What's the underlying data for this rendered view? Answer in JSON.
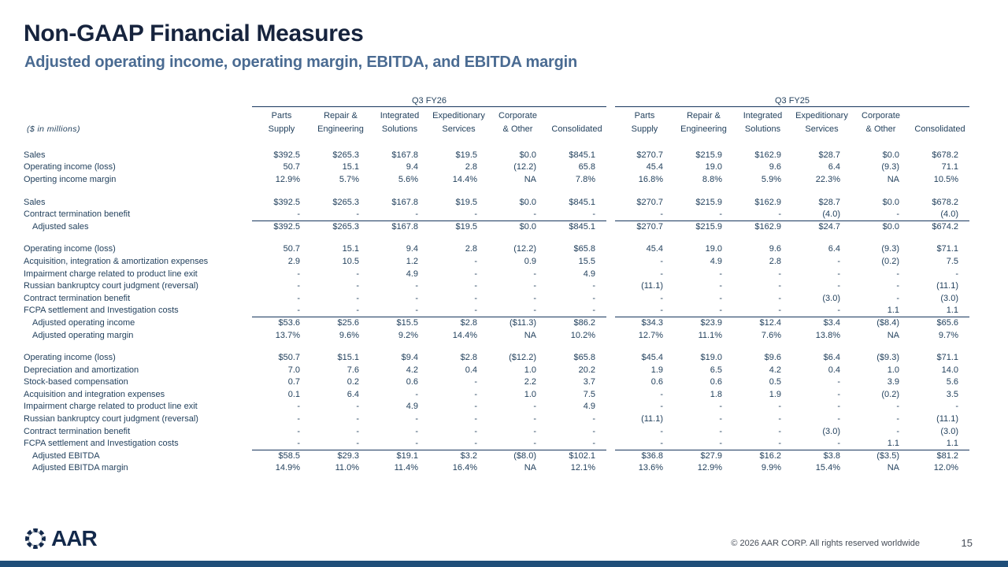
{
  "title": "Non-GAAP Financial Measures",
  "subtitle": "Adjusted operating income, operating margin, EBITDA, and EBITDA margin",
  "units_note": "($ in millions)",
  "colors": {
    "title_text": "#16233d",
    "subtitle_text": "#4a6b92",
    "table_text": "#24425e",
    "rule_line": "#17365d",
    "accent_bar": "#1f4e79"
  },
  "table": {
    "group_labels": [
      "Q3 FY26",
      "Q3 FY25"
    ],
    "column_headers": [
      [
        "Parts",
        "Supply"
      ],
      [
        "Repair &",
        "Engineering"
      ],
      [
        "Integrated",
        "Solutions"
      ],
      [
        "Expeditionary",
        "Services"
      ],
      [
        "Corporate",
        "& Other"
      ],
      [
        "",
        "Consolidated"
      ]
    ],
    "sections": [
      {
        "rows": [
          {
            "label": "Sales",
            "fy26": [
              "$392.5",
              "$265.3",
              "$167.8",
              "$19.5",
              "$0.0",
              "$845.1"
            ],
            "fy25": [
              "$270.7",
              "$215.9",
              "$162.9",
              "$28.7",
              "$0.0",
              "$678.2"
            ]
          },
          {
            "label": "Operating income (loss)",
            "fy26": [
              "50.7",
              "15.1",
              "9.4",
              "2.8",
              "(12.2)",
              "65.8"
            ],
            "fy25": [
              "45.4",
              "19.0",
              "9.6",
              "6.4",
              "(9.3)",
              "71.1"
            ]
          },
          {
            "label": "Operting income margin",
            "fy26": [
              "12.9%",
              "5.7%",
              "5.6%",
              "14.4%",
              "NA",
              "7.8%"
            ],
            "fy25": [
              "16.8%",
              "8.8%",
              "5.9%",
              "22.3%",
              "NA",
              "10.5%"
            ]
          }
        ]
      },
      {
        "rows": [
          {
            "label": "Sales",
            "fy26": [
              "$392.5",
              "$265.3",
              "$167.8",
              "$19.5",
              "$0.0",
              "$845.1"
            ],
            "fy25": [
              "$270.7",
              "$215.9",
              "$162.9",
              "$28.7",
              "$0.0",
              "$678.2"
            ]
          },
          {
            "label": "Contract termination benefit",
            "fy26": [
              "-",
              "-",
              "-",
              "-",
              "-",
              "-"
            ],
            "fy25": [
              "-",
              "-",
              "-",
              "(4.0)",
              "-",
              "(4.0)"
            ]
          },
          {
            "label": "Adjusted sales",
            "indent": true,
            "ruleAbove": true,
            "fy26": [
              "$392.5",
              "$265.3",
              "$167.8",
              "$19.5",
              "$0.0",
              "$845.1"
            ],
            "fy25": [
              "$270.7",
              "$215.9",
              "$162.9",
              "$24.7",
              "$0.0",
              "$674.2"
            ]
          }
        ]
      },
      {
        "rows": [
          {
            "label": "Operating income (loss)",
            "fy26": [
              "50.7",
              "15.1",
              "9.4",
              "2.8",
              "(12.2)",
              "$65.8"
            ],
            "fy25": [
              "45.4",
              "19.0",
              "9.6",
              "6.4",
              "(9.3)",
              "$71.1"
            ]
          },
          {
            "label": "Acquisition, integration & amortization expenses",
            "fy26": [
              "2.9",
              "10.5",
              "1.2",
              "-",
              "0.9",
              "15.5"
            ],
            "fy25": [
              "-",
              "4.9",
              "2.8",
              "-",
              "(0.2)",
              "7.5"
            ]
          },
          {
            "label": "Impairment charge related to product line exit",
            "fy26": [
              "-",
              "-",
              "4.9",
              "-",
              "-",
              "4.9"
            ],
            "fy25": [
              "-",
              "-",
              "-",
              "-",
              "-",
              "-"
            ]
          },
          {
            "label": "Russian bankruptcy court judgment (reversal)",
            "fy26": [
              "-",
              "-",
              "-",
              "-",
              "-",
              "-"
            ],
            "fy25": [
              "(11.1)",
              "-",
              "-",
              "-",
              "-",
              "(11.1)"
            ]
          },
          {
            "label": "Contract termination benefit",
            "fy26": [
              "-",
              "-",
              "-",
              "-",
              "-",
              "-"
            ],
            "fy25": [
              "-",
              "-",
              "-",
              "(3.0)",
              "-",
              "(3.0)"
            ]
          },
          {
            "label": "FCPA settlement and Investigation costs",
            "fy26": [
              "-",
              "-",
              "-",
              "-",
              "-",
              "-"
            ],
            "fy25": [
              "-",
              "-",
              "-",
              "-",
              "1.1",
              "1.1"
            ]
          },
          {
            "label": "Adjusted operating income",
            "indent": true,
            "ruleAbove": true,
            "fy26": [
              "$53.6",
              "$25.6",
              "$15.5",
              "$2.8",
              "($11.3)",
              "$86.2"
            ],
            "fy25": [
              "$34.3",
              "$23.9",
              "$12.4",
              "$3.4",
              "($8.4)",
              "$65.6"
            ]
          },
          {
            "label": "Adjusted operating margin",
            "indent": true,
            "fy26": [
              "13.7%",
              "9.6%",
              "9.2%",
              "14.4%",
              "NA",
              "10.2%"
            ],
            "fy25": [
              "12.7%",
              "11.1%",
              "7.6%",
              "13.8%",
              "NA",
              "9.7%"
            ]
          }
        ]
      },
      {
        "rows": [
          {
            "label": "Operating income (loss)",
            "fy26": [
              "$50.7",
              "$15.1",
              "$9.4",
              "$2.8",
              "($12.2)",
              "$65.8"
            ],
            "fy25": [
              "$45.4",
              "$19.0",
              "$9.6",
              "$6.4",
              "($9.3)",
              "$71.1"
            ]
          },
          {
            "label": "Depreciation and amortization",
            "fy26": [
              "7.0",
              "7.6",
              "4.2",
              "0.4",
              "1.0",
              "20.2"
            ],
            "fy25": [
              "1.9",
              "6.5",
              "4.2",
              "0.4",
              "1.0",
              "14.0"
            ]
          },
          {
            "label": "Stock-based compensation",
            "fy26": [
              "0.7",
              "0.2",
              "0.6",
              "-",
              "2.2",
              "3.7"
            ],
            "fy25": [
              "0.6",
              "0.6",
              "0.5",
              "-",
              "3.9",
              "5.6"
            ]
          },
          {
            "label": "Acquisition and integration expenses",
            "fy26": [
              "0.1",
              "6.4",
              "-",
              "-",
              "1.0",
              "7.5"
            ],
            "fy25": [
              "-",
              "1.8",
              "1.9",
              "-",
              "(0.2)",
              "3.5"
            ]
          },
          {
            "label": "Impairment charge related to product line exit",
            "fy26": [
              "-",
              "-",
              "4.9",
              "-",
              "-",
              "4.9"
            ],
            "fy25": [
              "-",
              "-",
              "-",
              "-",
              "-",
              "-"
            ]
          },
          {
            "label": "Russian bankruptcy court judgment (reversal)",
            "fy26": [
              "-",
              "-",
              "-",
              "-",
              "-",
              "-"
            ],
            "fy25": [
              "(11.1)",
              "-",
              "-",
              "-",
              "-",
              "(11.1)"
            ]
          },
          {
            "label": "Contract termination benefit",
            "fy26": [
              "-",
              "-",
              "-",
              "-",
              "-",
              "-"
            ],
            "fy25": [
              "-",
              "-",
              "-",
              "(3.0)",
              "-",
              "(3.0)"
            ]
          },
          {
            "label": "FCPA settlement and Investigation costs",
            "fy26": [
              "-",
              "-",
              "-",
              "-",
              "-",
              "-"
            ],
            "fy25": [
              "-",
              "-",
              "-",
              "-",
              "1.1",
              "1.1"
            ]
          },
          {
            "label": "Adjusted EBITDA",
            "indent": true,
            "ruleAbove": true,
            "fy26": [
              "$58.5",
              "$29.3",
              "$19.1",
              "$3.2",
              "($8.0)",
              "$102.1"
            ],
            "fy25": [
              "$36.8",
              "$27.9",
              "$16.2",
              "$3.8",
              "($3.5)",
              "$81.2"
            ]
          },
          {
            "label": "Adjusted EBITDA margin",
            "indent": true,
            "fy26": [
              "14.9%",
              "11.0%",
              "11.4%",
              "16.4%",
              "NA",
              "12.1%"
            ],
            "fy25": [
              "13.6%",
              "12.9%",
              "9.9%",
              "15.4%",
              "NA",
              "12.0%"
            ]
          }
        ]
      }
    ]
  },
  "footer": {
    "logo_text": "AAR",
    "copyright": "© 2026 AAR CORP. All rights reserved worldwide",
    "page_number": "15"
  }
}
